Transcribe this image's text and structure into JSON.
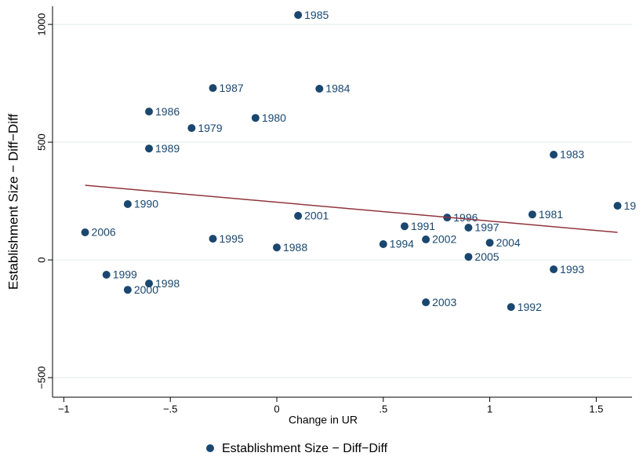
{
  "chart_data": {
    "type": "scatter",
    "x_label": "Change in UR",
    "y_label": "Establishment Size − Diff−Diff",
    "xlim": [
      -1.053,
      1.668
    ],
    "ylim": [
      -583,
      1077
    ],
    "xticks": [
      {
        "value": -1,
        "label": "−1"
      },
      {
        "value": -0.5,
        "label": "−.5"
      },
      0,
      {
        "value": 0.5,
        "label": ".5"
      },
      1,
      1.5
    ],
    "yticks": [
      {
        "value": -500,
        "label": "−500"
      },
      0,
      500,
      1000
    ],
    "grid": true,
    "legend": "bottom",
    "series": [
      {
        "name": "Establishment Size − Diff−Diff",
        "color": "#1a476f",
        "type": "scatter",
        "x": [
          0.1,
          -0.3,
          0.2,
          -0.6,
          -0.1,
          -0.4,
          -0.6,
          1.3,
          -0.7,
          1.6,
          1.2,
          0.1,
          0.8,
          0.6,
          0.9,
          -0.9,
          -0.3,
          0.7,
          1.0,
          0.5,
          0,
          0.9,
          1.3,
          -0.8,
          -0.6,
          -0.7,
          0.7,
          1.1
        ],
        "values": [
          1040,
          730,
          727,
          630,
          603,
          560,
          473,
          447,
          237,
          230,
          193,
          187,
          180,
          143,
          137,
          117,
          90,
          87,
          73,
          67,
          53,
          13,
          -40,
          -63,
          -100,
          -127,
          -180,
          -200
        ],
        "labels": [
          "1985",
          "1987",
          "1984",
          "1986",
          "1980",
          "1979",
          "1989",
          "1983",
          "1990",
          "19",
          "1981",
          "2001",
          "1996",
          "1991",
          "1997",
          "2006",
          "1995",
          "2002",
          "2004",
          "1994",
          "1988",
          "2005",
          "1993",
          "1999",
          "1998",
          "2000",
          "2003",
          "1992"
        ]
      },
      {
        "type": "line",
        "color": "#90353b",
        "x": [
          -0.9,
          1.6
        ],
        "values": [
          317,
          117
        ]
      }
    ]
  }
}
